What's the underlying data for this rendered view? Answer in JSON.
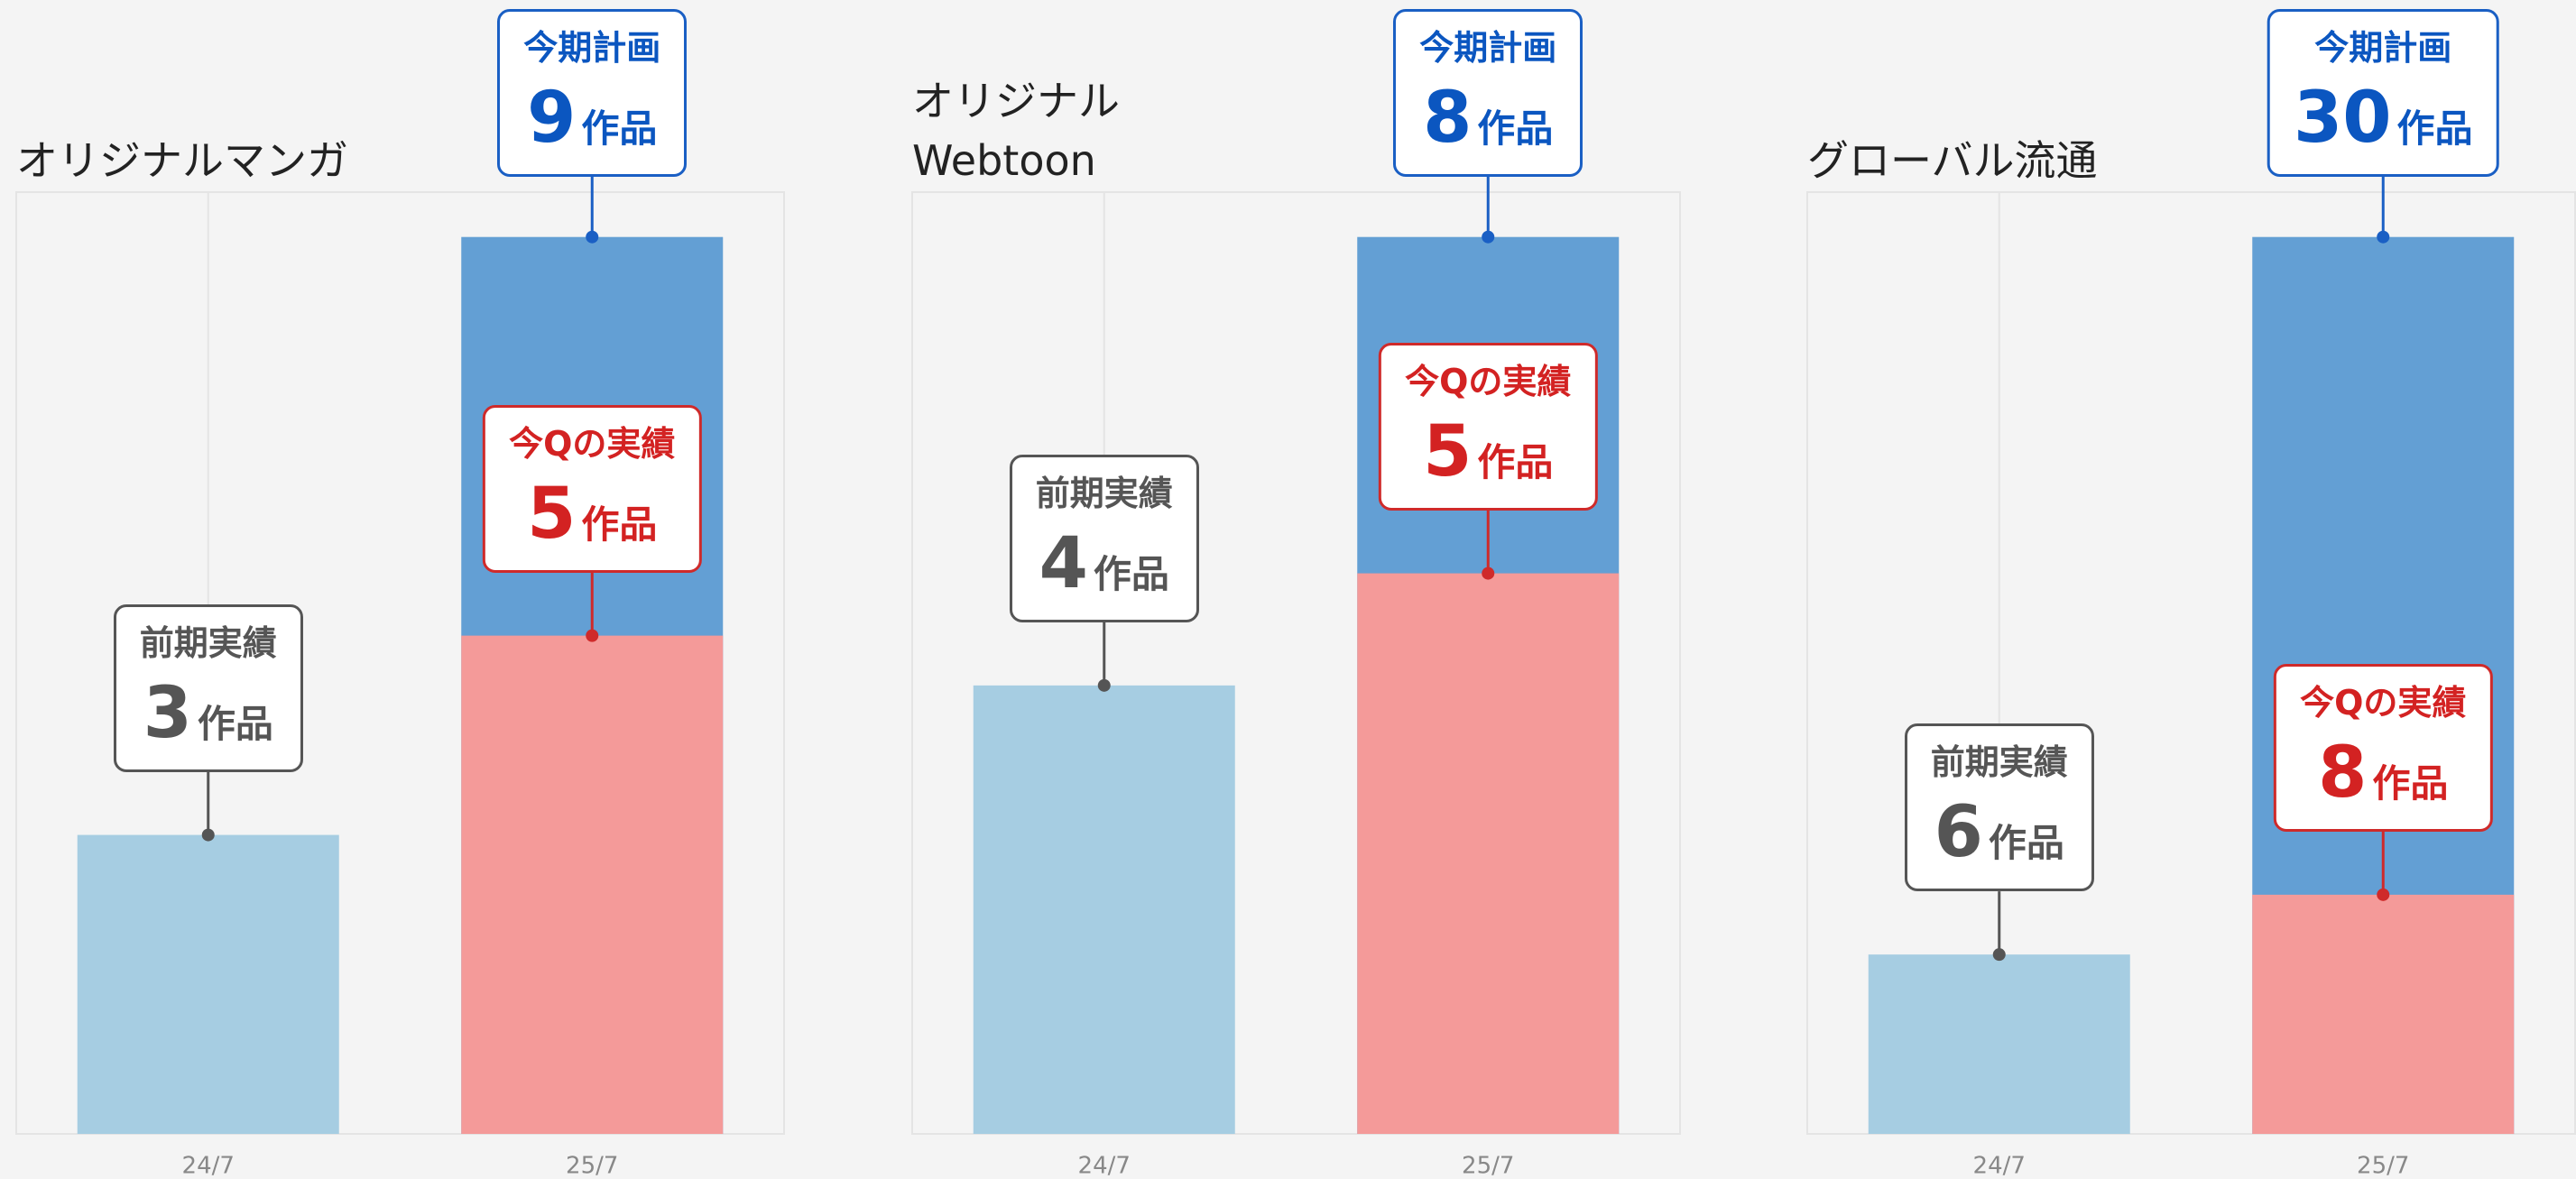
{
  "chart_data": [
    {
      "type": "bar",
      "title": "オリジナルマンガ",
      "categories": [
        "24/7",
        "25/7"
      ],
      "series": [
        {
          "name": "前期実績",
          "color": "#a6cde2",
          "values": [
            3,
            null
          ]
        },
        {
          "name": "今期計画",
          "color": "#639fd4",
          "values": [
            null,
            9
          ]
        },
        {
          "name": "今Qの実績",
          "color": "#f49a99",
          "values": [
            null,
            5
          ]
        }
      ],
      "unit": "作品",
      "ylim": [
        0,
        9.45
      ],
      "grid": true
    },
    {
      "type": "bar",
      "title": "オリジナル Webtoon",
      "categories": [
        "24/7",
        "25/7"
      ],
      "series": [
        {
          "name": "前期実績",
          "color": "#a6cde2",
          "values": [
            4,
            null
          ]
        },
        {
          "name": "今期計画",
          "color": "#639fd4",
          "values": [
            null,
            8
          ]
        },
        {
          "name": "今Qの実績",
          "color": "#f49a99",
          "values": [
            null,
            5
          ]
        }
      ],
      "unit": "作品",
      "ylim": [
        0,
        8.4
      ],
      "grid": true
    },
    {
      "type": "bar",
      "title": "グローバル流通",
      "categories": [
        "24/7",
        "25/7"
      ],
      "series": [
        {
          "name": "前期実績",
          "color": "#a6cde2",
          "values": [
            6,
            null
          ]
        },
        {
          "name": "今期計画",
          "color": "#639fd4",
          "values": [
            null,
            30
          ]
        },
        {
          "name": "今Qの実績",
          "color": "#f49a99",
          "values": [
            null,
            8
          ]
        }
      ],
      "unit": "作品",
      "ylim": [
        0,
        31.5
      ],
      "grid": true
    }
  ]
}
